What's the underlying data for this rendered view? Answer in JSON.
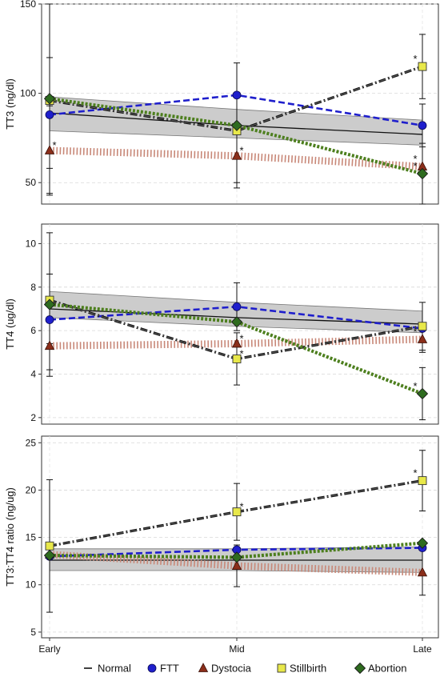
{
  "x_categories": [
    "Early",
    "Mid",
    "Late"
  ],
  "legend": {
    "items": [
      {
        "name": "Normal",
        "marker": "dash",
        "color": "#000000"
      },
      {
        "name": "FTT",
        "marker": "circle",
        "color": "#1f1fcc"
      },
      {
        "name": "Dystocia",
        "marker": "triangle",
        "color": "#8b2e1a"
      },
      {
        "name": "Stillbirth",
        "marker": "square",
        "color": "#e8e84a"
      },
      {
        "name": "Abortion",
        "marker": "diamond",
        "color": "#2e6b1f"
      }
    ]
  },
  "significance_marker": "*",
  "chart_data": [
    {
      "type": "line",
      "ylabel": "TT3 (ng/dl)",
      "ylim": [
        38,
        150
      ],
      "yticks": [
        50,
        100,
        150
      ],
      "x": [
        "Early",
        "Mid",
        "Late"
      ],
      "normal_band": {
        "lower": [
          79,
          75,
          71
        ],
        "upper": [
          98,
          91,
          85
        ]
      },
      "series": [
        {
          "name": "Normal",
          "values": [
            89,
            82,
            77
          ],
          "err": [
            31,
            0,
            0
          ],
          "star": [
            false,
            false,
            false
          ]
        },
        {
          "name": "FTT",
          "values": [
            88,
            99,
            82
          ],
          "err": [
            0,
            0,
            12
          ],
          "star": [
            false,
            false,
            false
          ]
        },
        {
          "name": "Dystocia",
          "values": [
            68,
            65,
            59
          ],
          "err": [
            25,
            15,
            0
          ],
          "star": [
            true,
            true,
            true
          ]
        },
        {
          "name": "Stillbirth",
          "values": [
            96,
            79,
            115
          ],
          "err": [
            0,
            0,
            18
          ],
          "star": [
            false,
            false,
            true
          ]
        },
        {
          "name": "Abortion",
          "values": [
            97,
            82,
            55
          ],
          "err": [
            53,
            35,
            17
          ],
          "star": [
            false,
            false,
            true
          ]
        }
      ]
    },
    {
      "type": "line",
      "ylabel": "TT4 (ug/dl)",
      "ylim": [
        1.7,
        10.9
      ],
      "yticks": [
        2,
        4,
        6,
        8,
        10
      ],
      "x": [
        "Early",
        "Mid",
        "Late"
      ],
      "normal_band": {
        "lower": [
          6.6,
          6.2,
          5.9
        ],
        "upper": [
          7.8,
          7.3,
          6.9
        ]
      },
      "series": [
        {
          "name": "Normal",
          "values": [
            7.0,
            6.6,
            6.3
          ],
          "err": [
            1.6,
            0,
            0
          ],
          "star": [
            false,
            false,
            false
          ]
        },
        {
          "name": "FTT",
          "values": [
            6.5,
            7.1,
            6.1
          ],
          "err": [
            0,
            1.1,
            0
          ],
          "star": [
            false,
            false,
            false
          ]
        },
        {
          "name": "Dystocia",
          "values": [
            5.3,
            5.4,
            5.6
          ],
          "err": [
            1.1,
            0,
            0.6
          ],
          "star": [
            false,
            true,
            true
          ]
        },
        {
          "name": "Stillbirth",
          "values": [
            7.4,
            4.7,
            6.2
          ],
          "err": [
            0,
            1.2,
            1.1
          ],
          "star": [
            false,
            true,
            false
          ]
        },
        {
          "name": "Abortion",
          "values": [
            7.2,
            6.4,
            3.1
          ],
          "err": [
            3.3,
            0,
            1.2
          ],
          "star": [
            false,
            false,
            true
          ]
        }
      ]
    },
    {
      "type": "line",
      "ylabel": "TT3:TT4 ratio (ng/ug)",
      "ylim": [
        4.4,
        25.7
      ],
      "yticks": [
        5,
        10,
        15,
        20,
        25
      ],
      "x": [
        "Early",
        "Mid",
        "Late"
      ],
      "normal_band": {
        "lower": [
          11.5,
          11.5,
          11.3
        ],
        "upper": [
          13.8,
          13.8,
          14.0
        ]
      },
      "series": [
        {
          "name": "Normal",
          "values": [
            12.6,
            12.6,
            12.6
          ],
          "err": [
            0,
            0,
            0
          ],
          "star": [
            false,
            false,
            false
          ]
        },
        {
          "name": "FTT",
          "values": [
            13.0,
            13.7,
            13.9
          ],
          "err": [
            0,
            0,
            0
          ],
          "star": [
            false,
            false,
            false
          ]
        },
        {
          "name": "Dystocia",
          "values": [
            13.2,
            12.0,
            11.3
          ],
          "err": [
            0,
            2.2,
            2.4
          ],
          "star": [
            false,
            false,
            false
          ]
        },
        {
          "name": "Stillbirth",
          "values": [
            14.1,
            17.7,
            21.0
          ],
          "err": [
            7.0,
            3.0,
            3.2
          ],
          "star": [
            false,
            true,
            true
          ]
        },
        {
          "name": "Abortion",
          "values": [
            13.1,
            12.9,
            14.4
          ],
          "err": [
            0,
            0,
            0
          ],
          "star": [
            false,
            false,
            false
          ]
        }
      ]
    }
  ]
}
